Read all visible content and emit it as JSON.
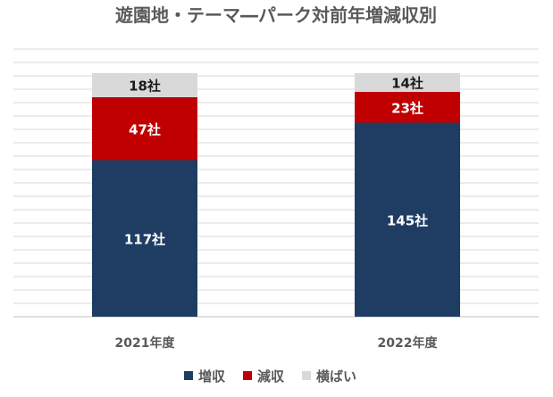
{
  "chart_data": {
    "type": "bar",
    "stacked": true,
    "title": "遊園地・テーマ―パーク対前年増減収別",
    "categories": [
      "2021年度",
      "2022年度"
    ],
    "series": [
      {
        "name": "増収",
        "values": [
          117,
          145
        ],
        "labels": [
          "117社",
          "145社"
        ],
        "color": "#1f3d63",
        "label_color": "#ffffff"
      },
      {
        "name": "減収",
        "values": [
          47,
          23
        ],
        "labels": [
          "47社",
          "23社"
        ],
        "color": "#c00000",
        "label_color": "#ffffff"
      },
      {
        "name": "横ばい",
        "values": [
          18,
          14
        ],
        "labels": [
          "18社",
          "14社"
        ],
        "color": "#d9d9d9",
        "label_color": "#1a1a1a"
      }
    ],
    "ylim": [
      0,
      200
    ],
    "grid": true,
    "legend_position": "bottom"
  }
}
